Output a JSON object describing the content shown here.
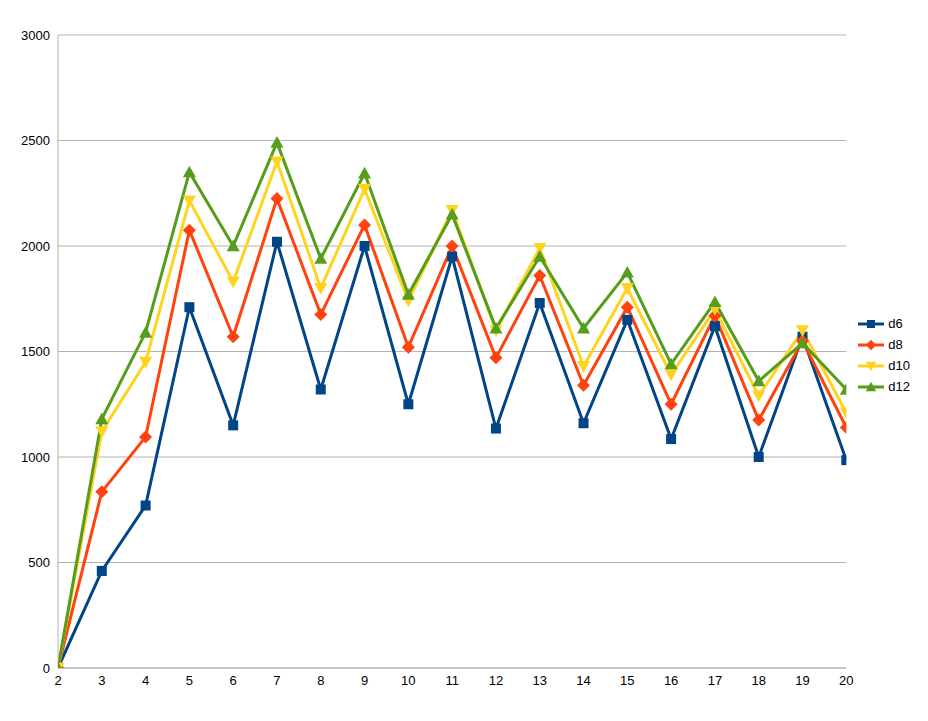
{
  "chart_data": {
    "type": "line",
    "x": [
      2,
      3,
      4,
      5,
      6,
      7,
      8,
      9,
      10,
      11,
      12,
      13,
      14,
      15,
      16,
      17,
      18,
      19,
      20
    ],
    "xlim": [
      2,
      20
    ],
    "xticks": [
      2,
      3,
      4,
      5,
      6,
      7,
      8,
      9,
      10,
      11,
      12,
      13,
      14,
      15,
      16,
      17,
      18,
      19,
      20
    ],
    "ylim": [
      0,
      3000
    ],
    "yticks": [
      0,
      500,
      1000,
      1500,
      2000,
      2500,
      3000
    ],
    "grid": true,
    "legend": "right",
    "series": [
      {
        "name": "d6",
        "color": "#004586",
        "marker": "square",
        "values": [
          0,
          460,
          770,
          1710,
          1150,
          2020,
          1320,
          2000,
          1250,
          1950,
          1135,
          1730,
          1160,
          1650,
          1085,
          1620,
          1000,
          1570,
          985
        ]
      },
      {
        "name": "d8",
        "color": "#ff420e",
        "marker": "diamond",
        "values": [
          0,
          835,
          1095,
          2075,
          1570,
          2225,
          1675,
          2100,
          1520,
          2000,
          1470,
          1860,
          1340,
          1710,
          1250,
          1670,
          1175,
          1550,
          1140
        ]
      },
      {
        "name": "d10",
        "color": "#ffd320",
        "marker": "triangle-down",
        "values": [
          0,
          1120,
          1450,
          2215,
          1830,
          2400,
          1800,
          2270,
          1740,
          2170,
          1600,
          1990,
          1430,
          1800,
          1390,
          1700,
          1290,
          1600,
          1210
        ]
      },
      {
        "name": "d12",
        "color": "#579d1c",
        "marker": "triangle",
        "values": [
          0,
          1180,
          1590,
          2350,
          2000,
          2490,
          1940,
          2345,
          1770,
          2150,
          1610,
          1950,
          1610,
          1875,
          1440,
          1735,
          1360,
          1540,
          1320
        ]
      }
    ]
  }
}
